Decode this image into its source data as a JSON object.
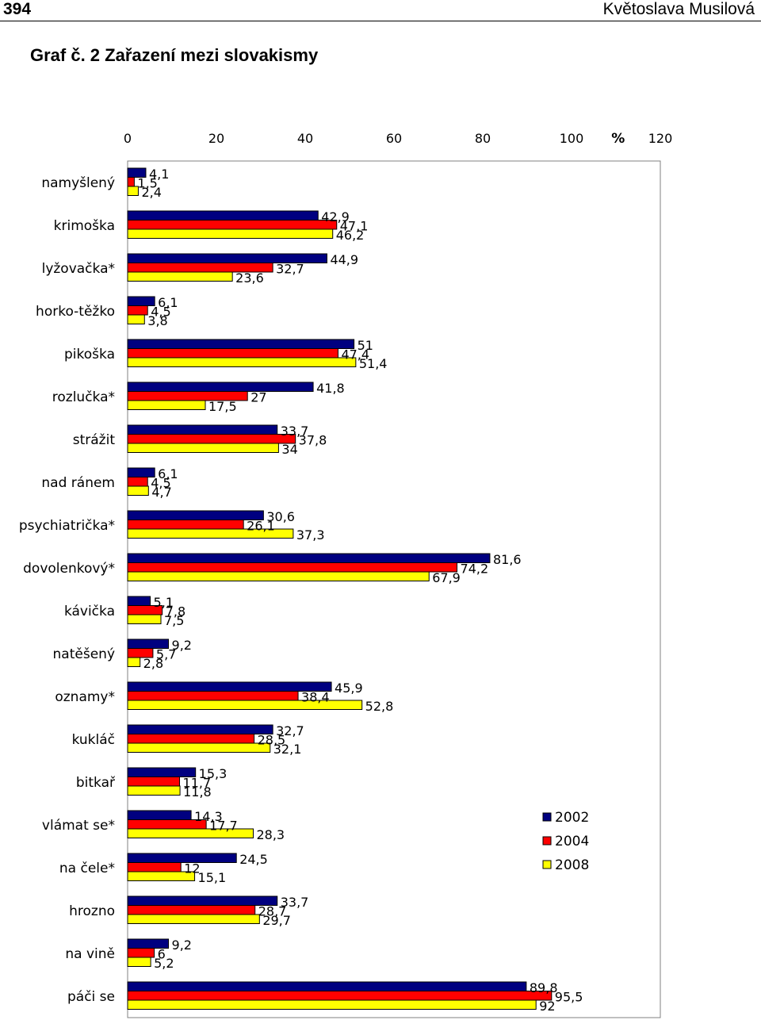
{
  "header": {
    "page_number": "394",
    "author": "Květoslava Musilová"
  },
  "figure": {
    "title": "Graf č. 2 Zařazení mezi slovakismy"
  },
  "chart_data": {
    "type": "bar",
    "orientation": "horizontal",
    "title": "Graf č. 2 Zařazení mezi slovakismy",
    "xlabel": "%",
    "xlim": [
      0,
      120
    ],
    "xticks": [
      0,
      20,
      40,
      60,
      80,
      100,
      120
    ],
    "grid": false,
    "legend_position": "right",
    "categories": [
      "namyšlený",
      "krimoška",
      "lyžovačka*",
      "horko-těžko",
      "pikoška",
      "rozlučka*",
      "strážit",
      "nad ránem",
      "psychiatrička*",
      "dovolenkový*",
      "kávička",
      "natěšený",
      "oznamy*",
      "kukláč",
      "bitkař",
      "vlámat se*",
      "na čele*",
      "hrozno",
      "na vině",
      "páči se"
    ],
    "series": [
      {
        "name": "2002",
        "color": "#000080",
        "values": [
          "4,1",
          "42,9",
          "44,9",
          "6,1",
          "51",
          "41,8",
          "33,7",
          "6,1",
          "30,6",
          "81,6",
          "5,1",
          "9,2",
          "45,9",
          "32,7",
          "15,3",
          "14,3",
          "24,5",
          "33,7",
          "9,2",
          "89,8"
        ]
      },
      {
        "name": "2004",
        "color": "#ff0000",
        "values": [
          "1,5",
          "47,1",
          "32,7",
          "4,5",
          "47,4",
          "27",
          "37,8",
          "4,5",
          "26,1",
          "74,2",
          "7,8",
          "5,7",
          "38,4",
          "28,5",
          "11,7",
          "17,7",
          "12",
          "28,7",
          "6",
          "95,5"
        ]
      },
      {
        "name": "2008",
        "color": "#ffff00",
        "values": [
          "2,4",
          "46,2",
          "23,6",
          "3,8",
          "51,4",
          "17,5",
          "34",
          "4,7",
          "37,3",
          "67,9",
          "7,5",
          "2,8",
          "52,8",
          "32,1",
          "11,8",
          "28,3",
          "15,1",
          "29,7",
          "5,2",
          "92"
        ]
      }
    ]
  }
}
